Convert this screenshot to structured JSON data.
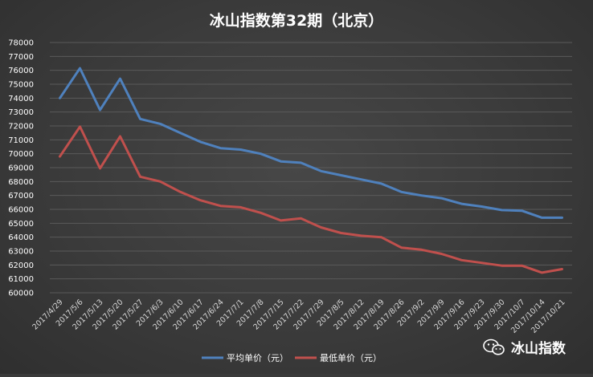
{
  "chart_data": {
    "type": "line",
    "title": "冰山指数第32期（北京）",
    "categories": [
      "2017/4/29",
      "2017/5/6",
      "2017/5/13",
      "2017/5/20",
      "2017/5/27",
      "2017/6/3",
      "2017/6/10",
      "2017/6/17",
      "2017/6/24",
      "2017/7/1",
      "2017/7/8",
      "2017/7/15",
      "2017/7/22",
      "2017/7/29",
      "2017/8/5",
      "2017/8/12",
      "2017/8/19",
      "2017/8/26",
      "2017/9/2",
      "2017/9/9",
      "2017/9/16",
      "2017/9/23",
      "2017/9/30",
      "2017/10/7",
      "2017/10/14",
      "2017/10/21"
    ],
    "series": [
      {
        "name": "平均单价（元）",
        "color": "#4f81bd",
        "values": [
          74000,
          76150,
          73150,
          75400,
          72500,
          72150,
          71500,
          70850,
          70400,
          70300,
          70000,
          69450,
          69350,
          68750,
          68450,
          68150,
          67850,
          67250,
          67000,
          66800,
          66400,
          66200,
          65950,
          65900,
          65400,
          65400
        ]
      },
      {
        "name": "最低单价（元）",
        "color": "#c0504d",
        "values": [
          69800,
          71950,
          68950,
          71250,
          68350,
          68000,
          67250,
          66650,
          66250,
          66150,
          65750,
          65200,
          65350,
          64700,
          64300,
          64100,
          64000,
          63250,
          63100,
          62800,
          62350,
          62150,
          61950,
          61950,
          61450,
          61700
        ]
      }
    ],
    "ylim": [
      60000,
      78000
    ],
    "ytick_step": 1000,
    "grid": true,
    "legend_position": "bottom-center",
    "xlabel": "",
    "ylabel": ""
  },
  "watermark": {
    "text": "冰山指数",
    "icon": "wechat-icon"
  }
}
